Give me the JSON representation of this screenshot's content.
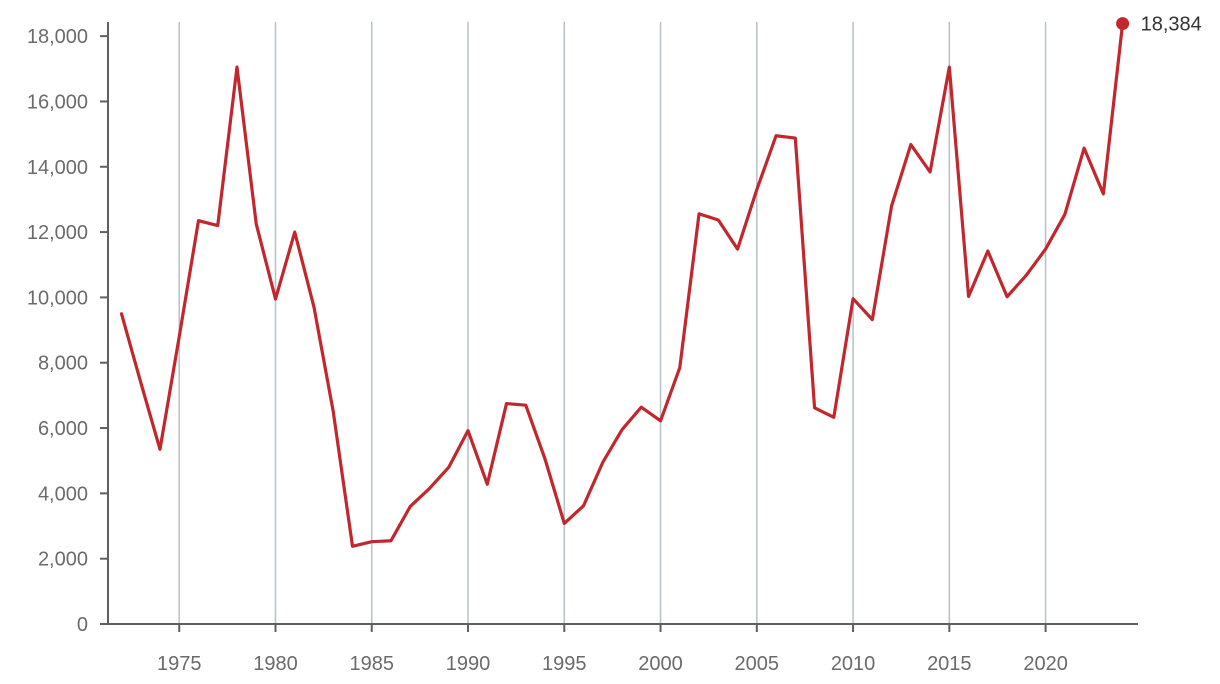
{
  "chart_data": {
    "type": "line",
    "title": "",
    "xlabel": "",
    "ylabel": "",
    "x": [
      1972,
      1973,
      1974,
      1975,
      1976,
      1977,
      1978,
      1979,
      1980,
      1981,
      1982,
      1983,
      1984,
      1985,
      1986,
      1987,
      1988,
      1989,
      1990,
      1991,
      1992,
      1993,
      1994,
      1995,
      1996,
      1997,
      1998,
      1999,
      2000,
      2001,
      2002,
      2003,
      2004,
      2005,
      2006,
      2007,
      2008,
      2009,
      2010,
      2011,
      2012,
      2013,
      2014,
      2015,
      2016,
      2017,
      2018,
      2019,
      2020,
      2021,
      2022,
      2023,
      2024
    ],
    "series": [
      {
        "values": [
          9500,
          7400,
          5350,
          8800,
          12350,
          12200,
          17050,
          12250,
          9950,
          12000,
          9700,
          6500,
          2380,
          2520,
          2550,
          3600,
          4150,
          4800,
          5920,
          4280,
          6750,
          6700,
          5050,
          3080,
          3620,
          4950,
          5950,
          6640,
          6220,
          7850,
          12560,
          12370,
          11480,
          13300,
          14950,
          14880,
          6620,
          6330,
          9960,
          9320,
          12800,
          14680,
          13840,
          17050,
          10030,
          11420,
          10020,
          10680,
          11480,
          12540,
          14570,
          13170,
          18384
        ]
      }
    ],
    "ylim": [
      0,
      18800
    ],
    "xlim": [
      1971.3,
      2024.8
    ],
    "y_ticks": [
      0,
      2000,
      4000,
      6000,
      8000,
      10000,
      12000,
      14000,
      16000,
      18000
    ],
    "y_tick_labels": [
      "0",
      "2,000",
      "4,000",
      "6,000",
      "8,000",
      "10,000",
      "12,000",
      "14,000",
      "16,000",
      "18,000"
    ],
    "x_ticks": [
      1975,
      1980,
      1985,
      1990,
      1995,
      2000,
      2005,
      2010,
      2015,
      2020
    ],
    "x_tick_labels": [
      "1975",
      "1980",
      "1985",
      "1990",
      "1995",
      "2000",
      "2005",
      "2010",
      "2015",
      "2020"
    ],
    "vertical_grid": true,
    "horizontal_grid": false,
    "line_color": "#c1272d",
    "grid_color": "#b6c0c8",
    "axis_color": "#5f5f5f",
    "last_value_label": "18,384"
  }
}
